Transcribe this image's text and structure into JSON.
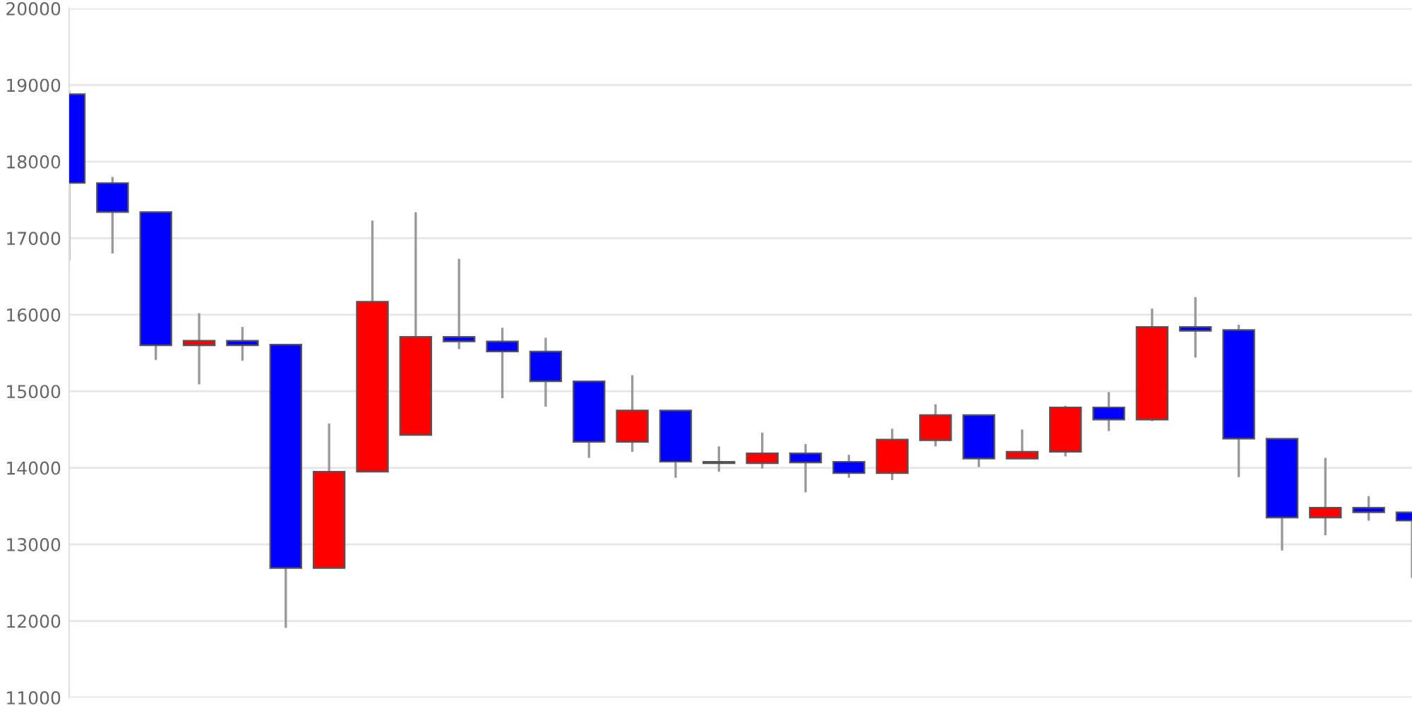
{
  "chart_data": {
    "type": "candlestick",
    "categories": [
      null,
      null,
      null,
      null,
      null,
      null,
      null,
      null,
      null,
      null,
      null,
      null,
      null,
      null,
      null,
      null,
      null,
      null,
      null,
      null,
      null,
      null,
      null,
      null,
      null,
      null,
      null,
      null,
      null,
      null,
      null,
      null
    ],
    "ohlc": [
      [
        18880,
        18930,
        16710,
        17720
      ],
      [
        17720,
        17800,
        16800,
        17340
      ],
      [
        17340,
        17340,
        15410,
        15600
      ],
      [
        15600,
        16020,
        15090,
        15660
      ],
      [
        15660,
        15840,
        15400,
        15600
      ],
      [
        15610,
        15610,
        11910,
        12690
      ],
      [
        12690,
        14580,
        12690,
        13950
      ],
      [
        13950,
        17230,
        13950,
        16170
      ],
      [
        14430,
        17340,
        14430,
        15710
      ],
      [
        15710,
        16730,
        15550,
        15650
      ],
      [
        15650,
        15830,
        14910,
        15520
      ],
      [
        15520,
        15700,
        14800,
        15130
      ],
      [
        15130,
        15130,
        14130,
        14340
      ],
      [
        14340,
        15210,
        14210,
        14750
      ],
      [
        14750,
        14750,
        13870,
        14080
      ],
      [
        14080,
        14280,
        13950,
        14060
      ],
      [
        14060,
        14460,
        13990,
        14190
      ],
      [
        14190,
        14310,
        13680,
        14070
      ],
      [
        14080,
        14170,
        13870,
        13930
      ],
      [
        13930,
        14510,
        13840,
        14370
      ],
      [
        14360,
        14830,
        14280,
        14690
      ],
      [
        14690,
        14690,
        14010,
        14120
      ],
      [
        14120,
        14500,
        14120,
        14210
      ],
      [
        14210,
        14810,
        14150,
        14790
      ],
      [
        14790,
        14990,
        14480,
        14630
      ],
      [
        14630,
        16080,
        14610,
        15840
      ],
      [
        15840,
        16230,
        15440,
        15790
      ],
      [
        15800,
        15870,
        13880,
        14380
      ],
      [
        14380,
        14380,
        12920,
        13350
      ],
      [
        13350,
        14130,
        13120,
        13480
      ],
      [
        13480,
        13630,
        13310,
        13420
      ],
      [
        13420,
        13420,
        12560,
        13310
      ]
    ],
    "colors": [
      "#0000ff",
      "#0000ff",
      "#0000ff",
      "#ff0000",
      "#0000ff",
      "#0000ff",
      "#ff0000",
      "#ff0000",
      "#ff0000",
      "#0000ff",
      "#0000ff",
      "#0000ff",
      "#0000ff",
      "#ff0000",
      "#0000ff",
      "#0000ff",
      "#ff0000",
      "#0000ff",
      "#0000ff",
      "#ff0000",
      "#ff0000",
      "#0000ff",
      "#ff0000",
      "#ff0000",
      "#0000ff",
      "#ff0000",
      "#0000ff",
      "#0000ff",
      "#0000ff",
      "#ff0000",
      "#0000ff",
      "#0000ff"
    ],
    "ylim": [
      11000,
      20000
    ],
    "yticks": [
      11000,
      12000,
      13000,
      14000,
      15000,
      16000,
      17000,
      18000,
      19000,
      20000
    ],
    "grid": "y",
    "tick_labels": "y"
  }
}
